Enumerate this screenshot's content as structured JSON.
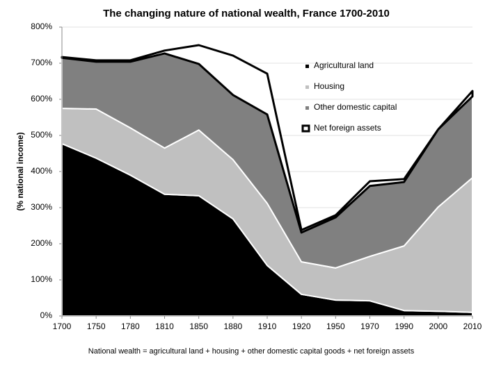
{
  "chart_data": {
    "type": "stacked_area",
    "title": "The changing nature of national wealth, France 1700-2010",
    "ylabel": "(% national income)",
    "note": "National wealth = agricultural land + housing + other domestic capital goods + net foreign assets",
    "categories": [
      "1700",
      "1750",
      "1780",
      "1810",
      "1850",
      "1880",
      "1910",
      "1920",
      "1950",
      "1970",
      "1990",
      "2000",
      "2010"
    ],
    "series": [
      {
        "name": "Agricultural land",
        "color": "#000000",
        "values": [
          477,
          437,
          390,
          337,
          333,
          269,
          140,
          60,
          44,
          42,
          15,
          13,
          10
        ]
      },
      {
        "name": "Housing",
        "color": "#c0c0c0",
        "values": [
          98,
          136,
          131,
          128,
          182,
          164,
          172,
          90,
          89,
          123,
          179,
          289,
          373
        ]
      },
      {
        "name": "Other domestic capital",
        "color": "#808080",
        "values": [
          140,
          131,
          183,
          262,
          183,
          179,
          246,
          81,
          140,
          195,
          177,
          215,
          225
        ]
      },
      {
        "name": "Net foreign assets",
        "color": "#ffffff",
        "values": [
          2,
          4,
          4,
          8,
          52,
          109,
          113,
          7,
          6,
          13,
          8,
          0,
          15
        ]
      }
    ],
    "ylim": [
      0,
      800
    ],
    "yticks": [
      {
        "value": 0,
        "label": "0%"
      },
      {
        "value": 100,
        "label": "100%"
      },
      {
        "value": 200,
        "label": "200%"
      },
      {
        "value": 300,
        "label": "300%"
      },
      {
        "value": 400,
        "label": "400%"
      },
      {
        "value": 500,
        "label": "500%"
      },
      {
        "value": 600,
        "label": "600%"
      },
      {
        "value": 700,
        "label": "700%"
      },
      {
        "value": 800,
        "label": "800%"
      }
    ],
    "grid": true
  }
}
